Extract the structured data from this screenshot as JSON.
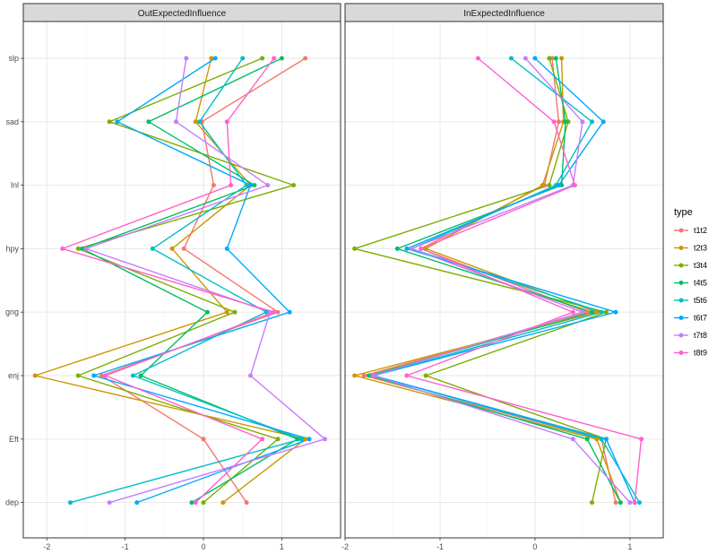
{
  "chart_data": {
    "type": "line",
    "orientation": "horizontal-x-value, vertical-categories",
    "panels": [
      {
        "title": "OutExpectedInfluence",
        "xlim": [
          -2.3,
          1.75
        ],
        "xticks": [
          -2,
          -1,
          0,
          1
        ]
      },
      {
        "title": "InExpectedInfluence",
        "xlim": [
          -2.0,
          1.35
        ],
        "xticks": [
          -2,
          -1,
          0,
          1
        ]
      }
    ],
    "categories": [
      "slp",
      "sad",
      "lnl",
      "hpy",
      "gng",
      "enj",
      "Eft",
      "dep"
    ],
    "legend": {
      "title": "type",
      "position": "right"
    },
    "grid": true,
    "series": [
      {
        "name": "t1t2",
        "color": "#F8766D",
        "out": [
          1.3,
          -0.02,
          0.13,
          -0.25,
          0.95,
          -1.3,
          0.0,
          0.55
        ],
        "in": [
          0.18,
          0.25,
          0.1,
          -1.2,
          0.55,
          -1.8,
          0.7,
          0.85
        ]
      },
      {
        "name": "t2t3",
        "color": "#CD9600",
        "out": [
          0.1,
          -0.1,
          0.6,
          -0.4,
          0.3,
          -2.15,
          1.3,
          0.25
        ],
        "in": [
          0.28,
          0.3,
          0.08,
          -1.15,
          0.65,
          -1.9,
          0.65,
          0.9
        ]
      },
      {
        "name": "t3t4",
        "color": "#7CAE00",
        "out": [
          0.75,
          -1.2,
          1.15,
          -1.6,
          0.4,
          -1.6,
          0.95,
          0.0
        ],
        "in": [
          0.15,
          0.35,
          0.15,
          -1.9,
          0.75,
          -1.15,
          0.75,
          0.6
        ]
      },
      {
        "name": "t4t5",
        "color": "#00BE67",
        "out": [
          1.0,
          -0.7,
          0.65,
          -1.55,
          0.05,
          -0.8,
          1.2,
          -0.15
        ],
        "in": [
          0.22,
          0.32,
          0.28,
          -1.45,
          0.6,
          -1.75,
          0.55,
          0.9
        ]
      },
      {
        "name": "t5t6",
        "color": "#00BFC4",
        "out": [
          0.5,
          -0.05,
          0.55,
          -0.65,
          0.8,
          -0.9,
          1.25,
          -1.7
        ],
        "in": [
          -0.25,
          0.6,
          0.22,
          -1.3,
          0.7,
          -1.7,
          0.7,
          1.1
        ]
      },
      {
        "name": "t6t7",
        "color": "#00A9FF",
        "out": [
          0.15,
          -1.1,
          0.6,
          0.3,
          1.1,
          -1.4,
          1.35,
          -0.85
        ],
        "in": [
          0.0,
          0.72,
          0.25,
          -1.35,
          0.85,
          -1.7,
          0.75,
          1.05
        ]
      },
      {
        "name": "t7t8",
        "color": "#C77CFF",
        "out": [
          -0.22,
          -0.35,
          0.82,
          -1.5,
          0.85,
          0.6,
          1.55,
          -1.2
        ],
        "in": [
          -0.1,
          0.5,
          0.4,
          -1.3,
          0.5,
          -1.7,
          0.4,
          1.0
        ]
      },
      {
        "name": "t8t9",
        "color": "#FF61CC",
        "out": [
          0.9,
          0.3,
          0.35,
          -1.8,
          0.9,
          -1.25,
          0.75,
          -0.1
        ],
        "in": [
          -0.6,
          0.2,
          0.42,
          -1.2,
          0.4,
          -1.35,
          1.12,
          1.05
        ]
      }
    ]
  }
}
